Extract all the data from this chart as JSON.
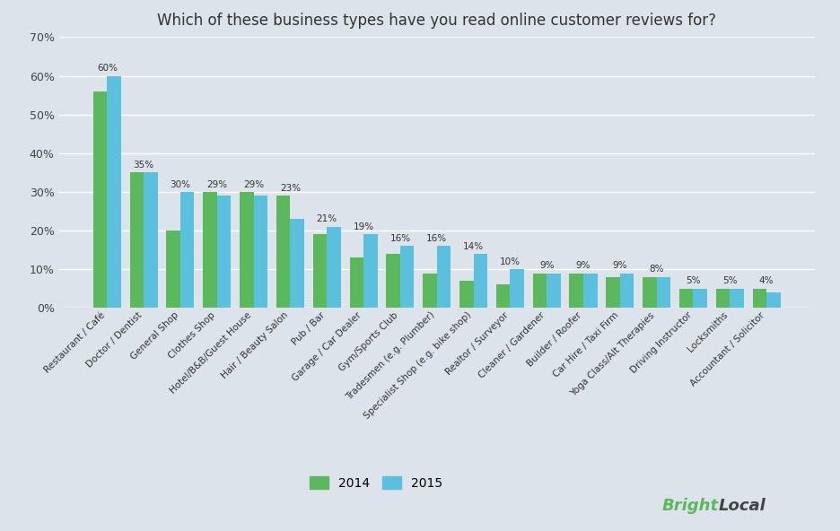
{
  "title": "Which of these business types have you read online customer reviews for?",
  "categories": [
    "Restaurant / Café",
    "Doctor / Dentist",
    "General Shop",
    "Clothes Shop",
    "Hotel/B&B/Guest House",
    "Hair / Beauty Salon",
    "Pub / Bar",
    "Garage / Car Dealer",
    "Gym/Sports Club",
    "Tradesmen (e.g. Plumber)",
    "Specialist Shop (e.g. bike shop)",
    "Realtor / Surveyor",
    "Cleaner / Gardener",
    "Builder / Roofer",
    "Car Hire / Taxi Firm",
    "Yoga Class/Alt Therapies",
    "Driving Instructor",
    "Locksmiths",
    "Accountant / Solicitor"
  ],
  "values_2014": [
    56,
    35,
    20,
    30,
    30,
    29,
    19,
    13,
    14,
    9,
    7,
    6,
    9,
    9,
    8,
    8,
    5,
    5,
    5
  ],
  "values_2015": [
    60,
    35,
    30,
    29,
    29,
    23,
    21,
    19,
    16,
    16,
    14,
    10,
    9,
    9,
    9,
    8,
    5,
    5,
    4
  ],
  "label_values": [
    60,
    35,
    30,
    29,
    29,
    23,
    21,
    19,
    16,
    16,
    14,
    10,
    9,
    9,
    9,
    8,
    5,
    5,
    4
  ],
  "color_2014": "#5cb85c",
  "color_2015": "#5bc0de",
  "background_color": "#dde3ea",
  "ylim": [
    0,
    70
  ],
  "yticks": [
    0,
    10,
    20,
    30,
    40,
    50,
    60,
    70
  ],
  "title_fontsize": 12,
  "legend_labels": [
    "2014",
    "2015"
  ],
  "brightlocal_green": "#5cb85c",
  "brightlocal_dark": "#444444"
}
